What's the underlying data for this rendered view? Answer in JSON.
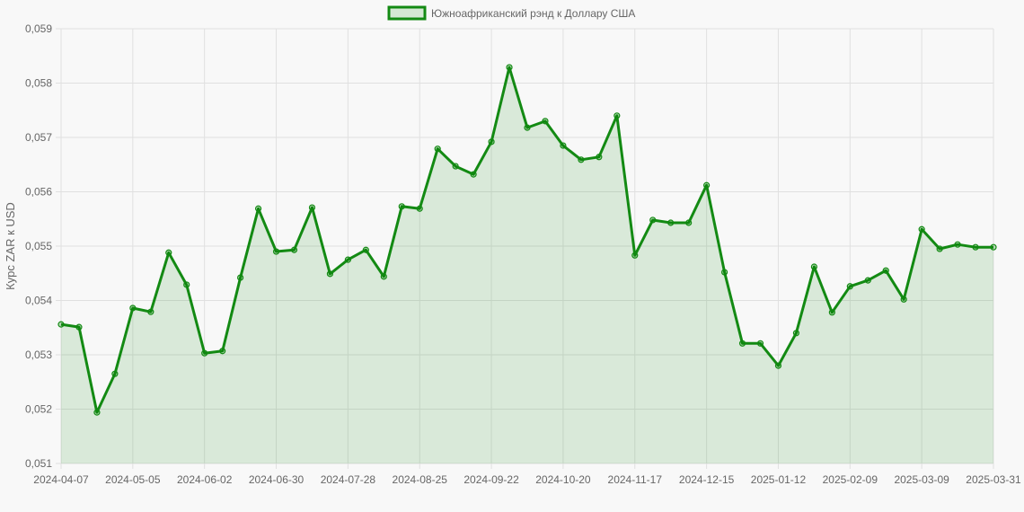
{
  "legend": {
    "label": "Южноафриканский рэнд к Доллару США",
    "swatch_fill": "#d5e8d4",
    "swatch_border": "#138a13"
  },
  "colors": {
    "line": "#138a13",
    "fill": "rgba(0,128,0,0.12)",
    "grid": "#e0e0e0",
    "text": "#666666",
    "background": "#f8f8f8"
  },
  "chart_data": {
    "type": "area",
    "title": "",
    "xlabel": "",
    "ylabel": "Курс ZAR к USD",
    "ylim": [
      0.051,
      0.059
    ],
    "grid": true,
    "legend_position": "top",
    "y_ticks": [
      "0,059",
      "0,058",
      "0,057",
      "0,056",
      "0,055",
      "0,054",
      "0,053",
      "0,052",
      "0,051"
    ],
    "x_tick_labels": [
      "2024-04-07",
      "2024-05-05",
      "2024-06-02",
      "2024-06-30",
      "2024-07-28",
      "2024-08-25",
      "2024-09-22",
      "2024-10-20",
      "2024-11-17",
      "2024-12-15",
      "2025-01-12",
      "2025-02-09",
      "2025-03-09",
      "2025-03-31"
    ],
    "series": [
      {
        "name": "Южноафриканский рэнд к Доллару США",
        "x": [
          "2024-04-07",
          "2024-04-14",
          "2024-04-21",
          "2024-04-28",
          "2024-05-05",
          "2024-05-12",
          "2024-05-19",
          "2024-05-26",
          "2024-06-02",
          "2024-06-09",
          "2024-06-16",
          "2024-06-23",
          "2024-06-30",
          "2024-07-07",
          "2024-07-14",
          "2024-07-21",
          "2024-07-28",
          "2024-08-04",
          "2024-08-11",
          "2024-08-18",
          "2024-08-25",
          "2024-09-01",
          "2024-09-08",
          "2024-09-15",
          "2024-09-22",
          "2024-09-29",
          "2024-10-06",
          "2024-10-13",
          "2024-10-20",
          "2024-10-27",
          "2024-11-03",
          "2024-11-10",
          "2024-11-17",
          "2024-11-24",
          "2024-12-01",
          "2024-12-08",
          "2024-12-15",
          "2024-12-22",
          "2024-12-29",
          "2025-01-05",
          "2025-01-12",
          "2025-01-19",
          "2025-01-26",
          "2025-02-02",
          "2025-02-09",
          "2025-02-16",
          "2025-02-23",
          "2025-03-02",
          "2025-03-09",
          "2025-03-16",
          "2025-03-23",
          "2025-03-30",
          "2025-03-31"
        ],
        "values": [
          0.05356,
          0.05351,
          0.05194,
          0.05265,
          0.05386,
          0.05379,
          0.05488,
          0.05429,
          0.05303,
          0.05307,
          0.05442,
          0.05569,
          0.0549,
          0.05493,
          0.05571,
          0.05449,
          0.05475,
          0.05493,
          0.05444,
          0.05573,
          0.05569,
          0.05679,
          0.05647,
          0.05632,
          0.05692,
          0.05829,
          0.05718,
          0.0573,
          0.05685,
          0.05659,
          0.05664,
          0.0574,
          0.05483,
          0.05548,
          0.05543,
          0.05543,
          0.05612,
          0.05452,
          0.05321,
          0.05321,
          0.0528,
          0.0534,
          0.05462,
          0.05378,
          0.05426,
          0.05437,
          0.05455,
          0.05402,
          0.05531,
          0.05495,
          0.05503,
          0.05498,
          0.05498
        ]
      }
    ]
  }
}
